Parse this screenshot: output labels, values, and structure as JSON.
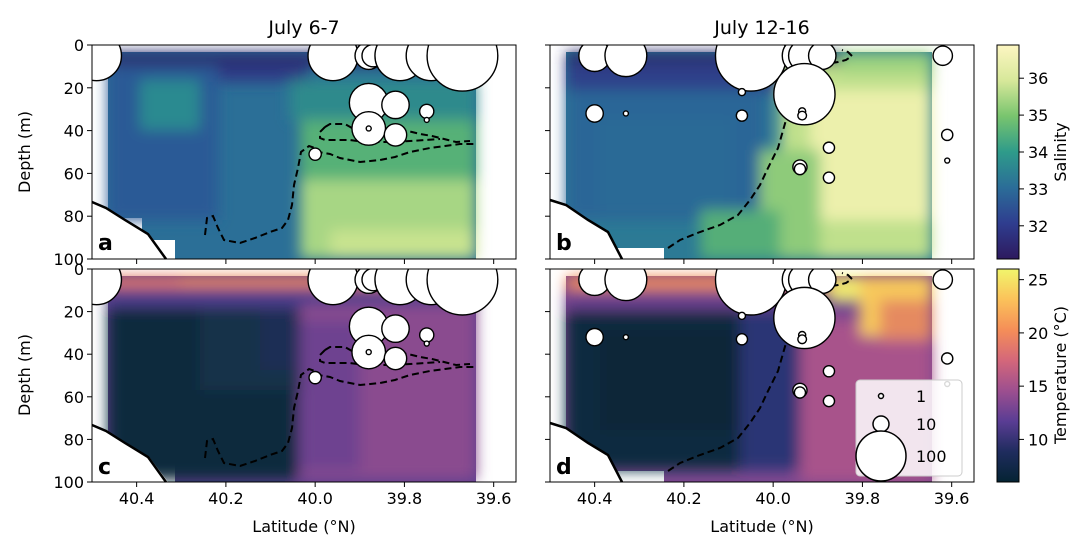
{
  "figure": {
    "col_titles": [
      "July 6-7",
      "July 12-16"
    ],
    "xlabel": "Latitude (°N)",
    "ylabel": "Depth (m)",
    "panel_letters": [
      "a",
      "b",
      "c",
      "d"
    ],
    "colorbars": [
      {
        "label": "Salinity",
        "ticks": [
          32,
          33,
          34,
          35,
          36
        ],
        "range": [
          31.1,
          36.9
        ],
        "colors": [
          "#2d1a5e",
          "#2f3d8f",
          "#2b6d98",
          "#2e9b8a",
          "#78c46e",
          "#d7e89a",
          "#fdf6c2"
        ]
      },
      {
        "label": "Temperature (°C)",
        "ticks": [
          10,
          15,
          20,
          25
        ],
        "range": [
          6,
          26
        ],
        "colors": [
          "#042333",
          "#1f2c5e",
          "#5a3d94",
          "#9d4f8f",
          "#d4677a",
          "#f58e58",
          "#fbc25a",
          "#f1f56c"
        ]
      }
    ],
    "legend": {
      "title": "",
      "entries": [
        "1",
        "10",
        "100"
      ]
    }
  },
  "chart_data": [
    {
      "type": "heatmap",
      "panel": "a",
      "title": "July 6-7",
      "variable": "Salinity",
      "xlim": [
        40.5,
        39.55
      ],
      "ylim": [
        100,
        0
      ],
      "xticks": [
        40.4,
        40.2,
        40.0,
        39.8,
        39.6
      ],
      "yticks": [
        0,
        20,
        40,
        60,
        80,
        100
      ],
      "bubbles": [
        {
          "lat": 40.49,
          "depth": 5,
          "count": 100
        },
        {
          "lat": 39.96,
          "depth": 5,
          "count": 100
        },
        {
          "lat": 39.88,
          "depth": 5,
          "count": 30
        },
        {
          "lat": 39.87,
          "depth": 5,
          "count": 20
        },
        {
          "lat": 39.81,
          "depth": 5,
          "count": 100
        },
        {
          "lat": 39.74,
          "depth": 5,
          "count": 100
        },
        {
          "lat": 39.67,
          "depth": 5,
          "count": 200
        },
        {
          "lat": 39.88,
          "depth": 27,
          "count": 60
        },
        {
          "lat": 39.82,
          "depth": 28,
          "count": 30
        },
        {
          "lat": 39.75,
          "depth": 31,
          "count": 8
        },
        {
          "lat": 39.75,
          "depth": 35,
          "count": 1
        },
        {
          "lat": 39.88,
          "depth": 39,
          "count": 45
        },
        {
          "lat": 39.88,
          "depth": 39,
          "count": 1
        },
        {
          "lat": 39.82,
          "depth": 42,
          "count": 20
        },
        {
          "lat": 40.0,
          "depth": 51,
          "count": 6
        }
      ]
    },
    {
      "type": "heatmap",
      "panel": "b",
      "title": "July 12-16",
      "variable": "Salinity",
      "xlim": [
        40.5,
        39.55
      ],
      "ylim": [
        100,
        0
      ],
      "xticks": [
        40.4,
        40.2,
        40.0,
        39.8,
        39.6
      ],
      "yticks": [
        0,
        20,
        40,
        60,
        80,
        100
      ],
      "bubbles": [
        {
          "lat": 40.4,
          "depth": 5,
          "count": 40
        },
        {
          "lat": 40.33,
          "depth": 5,
          "count": 70
        },
        {
          "lat": 40.05,
          "depth": 5,
          "count": 200
        },
        {
          "lat": 39.945,
          "depth": 5,
          "count": 30
        },
        {
          "lat": 39.94,
          "depth": 5,
          "count": 50
        },
        {
          "lat": 39.93,
          "depth": 5,
          "count": 40
        },
        {
          "lat": 39.89,
          "depth": 5,
          "count": 30
        },
        {
          "lat": 39.62,
          "depth": 5,
          "count": 15
        },
        {
          "lat": 40.07,
          "depth": 22,
          "count": 2
        },
        {
          "lat": 39.93,
          "depth": 23,
          "count": 150
        },
        {
          "lat": 39.935,
          "depth": 31,
          "count": 2
        },
        {
          "lat": 39.935,
          "depth": 33,
          "count": 3
        },
        {
          "lat": 40.4,
          "depth": 32,
          "count": 12
        },
        {
          "lat": 40.33,
          "depth": 32,
          "count": 1
        },
        {
          "lat": 40.07,
          "depth": 33,
          "count": 5
        },
        {
          "lat": 39.61,
          "depth": 42,
          "count": 5
        },
        {
          "lat": 39.875,
          "depth": 48,
          "count": 5
        },
        {
          "lat": 39.61,
          "depth": 54,
          "count": 1
        },
        {
          "lat": 39.94,
          "depth": 57,
          "count": 8
        },
        {
          "lat": 39.94,
          "depth": 58,
          "count": 5
        },
        {
          "lat": 39.875,
          "depth": 62,
          "count": 5
        }
      ]
    },
    {
      "type": "heatmap",
      "panel": "c",
      "title": "",
      "variable": "Temperature (°C)",
      "xlim": [
        40.5,
        39.55
      ],
      "ylim": [
        100,
        0
      ],
      "xticks": [
        40.4,
        40.2,
        40.0,
        39.8,
        39.6
      ],
      "yticks": [
        0,
        20,
        40,
        60,
        80,
        100
      ],
      "bubbles": "same as panel a"
    },
    {
      "type": "heatmap",
      "panel": "d",
      "title": "",
      "variable": "Temperature (°C)",
      "xlim": [
        40.5,
        39.55
      ],
      "ylim": [
        100,
        0
      ],
      "xticks": [
        40.4,
        40.2,
        40.0,
        39.8,
        39.6
      ],
      "yticks": [
        0,
        20,
        40,
        60,
        80,
        100
      ],
      "bubbles": "same as panel b"
    }
  ]
}
